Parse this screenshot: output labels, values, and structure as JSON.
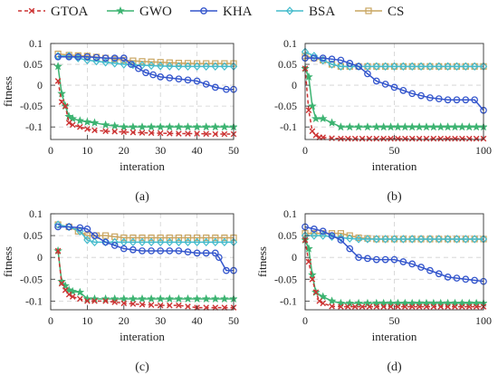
{
  "legend": {
    "placement": "top",
    "entries": [
      {
        "name": "GTOA",
        "color": "#cc3333",
        "line": "dashed",
        "marker": "x"
      },
      {
        "name": "GWO",
        "color": "#3cb371",
        "line": "solid",
        "marker": "star"
      },
      {
        "name": "KHA",
        "color": "#3355cc",
        "line": "solid",
        "marker": "circle"
      },
      {
        "name": "BSA",
        "color": "#44bbcc",
        "line": "solid",
        "marker": "diamond"
      },
      {
        "name": "CS",
        "color": "#c9a560",
        "line": "solid",
        "marker": "square"
      }
    ]
  },
  "chart_data": [
    {
      "type": "line",
      "panel_label": "(a)",
      "xlabel": "interation",
      "ylabel": "fitness",
      "xlim": [
        0,
        50
      ],
      "ylim": [
        -0.13,
        0.1
      ],
      "xticks": [
        "0",
        "10",
        "20",
        "30",
        "40",
        "50"
      ],
      "yticks": [
        "0.1",
        "0.05",
        "0",
        "-0.05",
        "-0.1"
      ],
      "ytick_values": [
        0.1,
        0.05,
        0,
        -0.05,
        -0.1
      ],
      "grid": true,
      "series": [
        {
          "name": "GTOA",
          "x": [
            2,
            3,
            4,
            5,
            6,
            8,
            10,
            12,
            15,
            20,
            25,
            30,
            35,
            40,
            45,
            50
          ],
          "y": [
            0.01,
            -0.04,
            -0.05,
            -0.09,
            -0.095,
            -0.1,
            -0.105,
            -0.108,
            -0.11,
            -0.112,
            -0.114,
            -0.115,
            -0.116,
            -0.116,
            -0.117,
            -0.117
          ]
        },
        {
          "name": "GWO",
          "x": [
            2,
            3,
            4,
            5,
            6,
            8,
            10,
            12,
            15,
            20,
            25,
            30,
            35,
            40,
            45,
            50
          ],
          "y": [
            0.045,
            -0.02,
            -0.05,
            -0.075,
            -0.08,
            -0.085,
            -0.088,
            -0.09,
            -0.095,
            -0.1,
            -0.1,
            -0.1,
            -0.1,
            -0.1,
            -0.1,
            -0.1
          ]
        },
        {
          "name": "KHA",
          "x": [
            2,
            5,
            10,
            15,
            20,
            22,
            24,
            26,
            28,
            30,
            35,
            40,
            45,
            48,
            50
          ],
          "y": [
            0.068,
            0.068,
            0.068,
            0.065,
            0.065,
            0.05,
            0.04,
            0.03,
            0.025,
            0.02,
            0.015,
            0.01,
            -0.005,
            -0.01,
            -0.01
          ]
        },
        {
          "name": "BSA",
          "x": [
            2,
            5,
            10,
            15,
            20,
            25,
            30,
            35,
            40,
            45,
            50
          ],
          "y": [
            0.07,
            0.07,
            0.06,
            0.055,
            0.05,
            0.048,
            0.046,
            0.045,
            0.045,
            0.045,
            0.045
          ]
        },
        {
          "name": "CS",
          "x": [
            2,
            5,
            10,
            15,
            20,
            25,
            30,
            35,
            40,
            45,
            50
          ],
          "y": [
            0.075,
            0.072,
            0.07,
            0.065,
            0.06,
            0.057,
            0.055,
            0.053,
            0.052,
            0.052,
            0.052
          ]
        }
      ]
    },
    {
      "type": "line",
      "panel_label": "(b)",
      "xlabel": "interation",
      "ylabel": "",
      "xlim": [
        0,
        100
      ],
      "ylim": [
        -0.13,
        0.1
      ],
      "xticks": [
        "0",
        "50",
        "100"
      ],
      "yticks": [
        "0.1",
        "0.05",
        "0",
        "-0.05",
        "-0.1"
      ],
      "ytick_values": [
        0.1,
        0.05,
        0,
        -0.05,
        -0.1
      ],
      "grid": true,
      "series": [
        {
          "name": "GTOA",
          "x": [
            0,
            2,
            4,
            6,
            8,
            10,
            15,
            20,
            40,
            60,
            80,
            100
          ],
          "y": [
            0.04,
            -0.06,
            -0.11,
            -0.12,
            -0.125,
            -0.125,
            -0.127,
            -0.128,
            -0.128,
            -0.128,
            -0.128,
            -0.128
          ]
        },
        {
          "name": "GWO",
          "x": [
            0,
            2,
            4,
            6,
            10,
            15,
            20,
            30,
            40,
            60,
            80,
            100
          ],
          "y": [
            0.04,
            0.02,
            -0.05,
            -0.08,
            -0.08,
            -0.09,
            -0.1,
            -0.1,
            -0.1,
            -0.1,
            -0.1,
            -0.1
          ]
        },
        {
          "name": "KHA",
          "x": [
            0,
            10,
            20,
            30,
            40,
            50,
            60,
            70,
            80,
            90,
            95,
            100
          ],
          "y": [
            0.065,
            0.065,
            0.06,
            0.045,
            0.01,
            -0.005,
            -0.02,
            -0.03,
            -0.035,
            -0.035,
            -0.035,
            -0.06
          ]
        },
        {
          "name": "BSA",
          "x": [
            0,
            5,
            10,
            15,
            20,
            30,
            40,
            50,
            60,
            70,
            80,
            90,
            100
          ],
          "y": [
            0.08,
            0.07,
            0.06,
            0.05,
            0.045,
            0.045,
            0.045,
            0.045,
            0.045,
            0.045,
            0.045,
            0.045,
            0.045
          ]
        },
        {
          "name": "CS",
          "x": [
            0,
            5,
            10,
            15,
            20,
            30,
            40,
            50,
            60,
            70,
            80,
            90,
            100
          ],
          "y": [
            0.07,
            0.065,
            0.06,
            0.05,
            0.045,
            0.045,
            0.045,
            0.045,
            0.045,
            0.045,
            0.045,
            0.045,
            0.045
          ]
        }
      ]
    },
    {
      "type": "line",
      "panel_label": "(c)",
      "xlabel": "interation",
      "ylabel": "fitness",
      "xlim": [
        0,
        50
      ],
      "ylim": [
        -0.12,
        0.1
      ],
      "xticks": [
        "0",
        "10",
        "20",
        "30",
        "40",
        "50"
      ],
      "yticks": [
        "0.1",
        "0.05",
        "0",
        "-0.05",
        "-0.1"
      ],
      "ytick_values": [
        0.1,
        0.05,
        0,
        -0.05,
        -0.1
      ],
      "grid": true,
      "series": [
        {
          "name": "GTOA",
          "x": [
            2,
            3,
            4,
            5,
            6,
            8,
            10,
            12,
            15,
            20,
            25,
            30,
            35,
            40,
            45,
            50
          ],
          "y": [
            0.015,
            -0.06,
            -0.075,
            -0.085,
            -0.09,
            -0.095,
            -0.1,
            -0.1,
            -0.1,
            -0.105,
            -0.108,
            -0.11,
            -0.11,
            -0.115,
            -0.115,
            -0.115
          ]
        },
        {
          "name": "GWO",
          "x": [
            2,
            3,
            4,
            5,
            6,
            8,
            10,
            12,
            15,
            20,
            25,
            30,
            35,
            40,
            45,
            50
          ],
          "y": [
            0.015,
            -0.055,
            -0.065,
            -0.075,
            -0.078,
            -0.08,
            -0.095,
            -0.095,
            -0.095,
            -0.095,
            -0.095,
            -0.095,
            -0.095,
            -0.095,
            -0.095,
            -0.095
          ]
        },
        {
          "name": "KHA",
          "x": [
            2,
            5,
            8,
            10,
            12,
            15,
            20,
            25,
            30,
            35,
            40,
            45,
            46,
            48,
            50
          ],
          "y": [
            0.07,
            0.07,
            0.068,
            0.065,
            0.05,
            0.035,
            0.02,
            0.015,
            0.015,
            0.015,
            0.01,
            0.01,
            0.0,
            -0.03,
            -0.03
          ]
        },
        {
          "name": "BSA",
          "x": [
            2,
            5,
            8,
            10,
            12,
            15,
            20,
            25,
            30,
            35,
            40,
            45,
            50
          ],
          "y": [
            0.075,
            0.07,
            0.06,
            0.04,
            0.035,
            0.035,
            0.035,
            0.035,
            0.035,
            0.035,
            0.035,
            0.035,
            0.035
          ]
        },
        {
          "name": "CS",
          "x": [
            2,
            5,
            10,
            15,
            20,
            25,
            30,
            35,
            40,
            45,
            50
          ],
          "y": [
            0.075,
            0.07,
            0.05,
            0.05,
            0.045,
            0.045,
            0.045,
            0.045,
            0.045,
            0.045,
            0.045
          ]
        }
      ]
    },
    {
      "type": "line",
      "panel_label": "(d)",
      "xlabel": "interation",
      "ylabel": "fitness",
      "xlim": [
        0,
        100
      ],
      "ylim": [
        -0.12,
        0.1
      ],
      "xticks": [
        "0",
        "50",
        "100"
      ],
      "yticks": [
        "0.1",
        "0.05",
        "0",
        "-0.05",
        "-0.1"
      ],
      "ytick_values": [
        0.1,
        0.05,
        0,
        -0.05,
        -0.1
      ],
      "grid": true,
      "series": [
        {
          "name": "GTOA",
          "x": [
            0,
            2,
            4,
            6,
            8,
            10,
            15,
            20,
            40,
            60,
            80,
            100
          ],
          "y": [
            0.04,
            -0.01,
            -0.05,
            -0.08,
            -0.1,
            -0.105,
            -0.112,
            -0.113,
            -0.113,
            -0.113,
            -0.113,
            -0.113
          ]
        },
        {
          "name": "GWO",
          "x": [
            0,
            2,
            4,
            6,
            10,
            15,
            20,
            30,
            40,
            60,
            80,
            100
          ],
          "y": [
            0.04,
            0.02,
            -0.04,
            -0.08,
            -0.09,
            -0.1,
            -0.105,
            -0.105,
            -0.105,
            -0.105,
            -0.105,
            -0.105
          ]
        },
        {
          "name": "KHA",
          "x": [
            0,
            10,
            20,
            30,
            40,
            50,
            60,
            70,
            80,
            90,
            100
          ],
          "y": [
            0.07,
            0.06,
            0.04,
            0.0,
            -0.005,
            -0.005,
            -0.015,
            -0.03,
            -0.045,
            -0.05,
            -0.055
          ]
        },
        {
          "name": "BSA",
          "x": [
            0,
            5,
            10,
            20,
            30,
            40,
            50,
            60,
            70,
            80,
            90,
            100
          ],
          "y": [
            0.05,
            0.05,
            0.05,
            0.045,
            0.042,
            0.042,
            0.042,
            0.042,
            0.042,
            0.042,
            0.042,
            0.042
          ]
        },
        {
          "name": "CS",
          "x": [
            0,
            5,
            10,
            20,
            30,
            40,
            50,
            60,
            70,
            80,
            90,
            100
          ],
          "y": [
            0.055,
            0.055,
            0.055,
            0.055,
            0.045,
            0.042,
            0.042,
            0.042,
            0.042,
            0.042,
            0.042,
            0.042
          ]
        }
      ]
    }
  ]
}
